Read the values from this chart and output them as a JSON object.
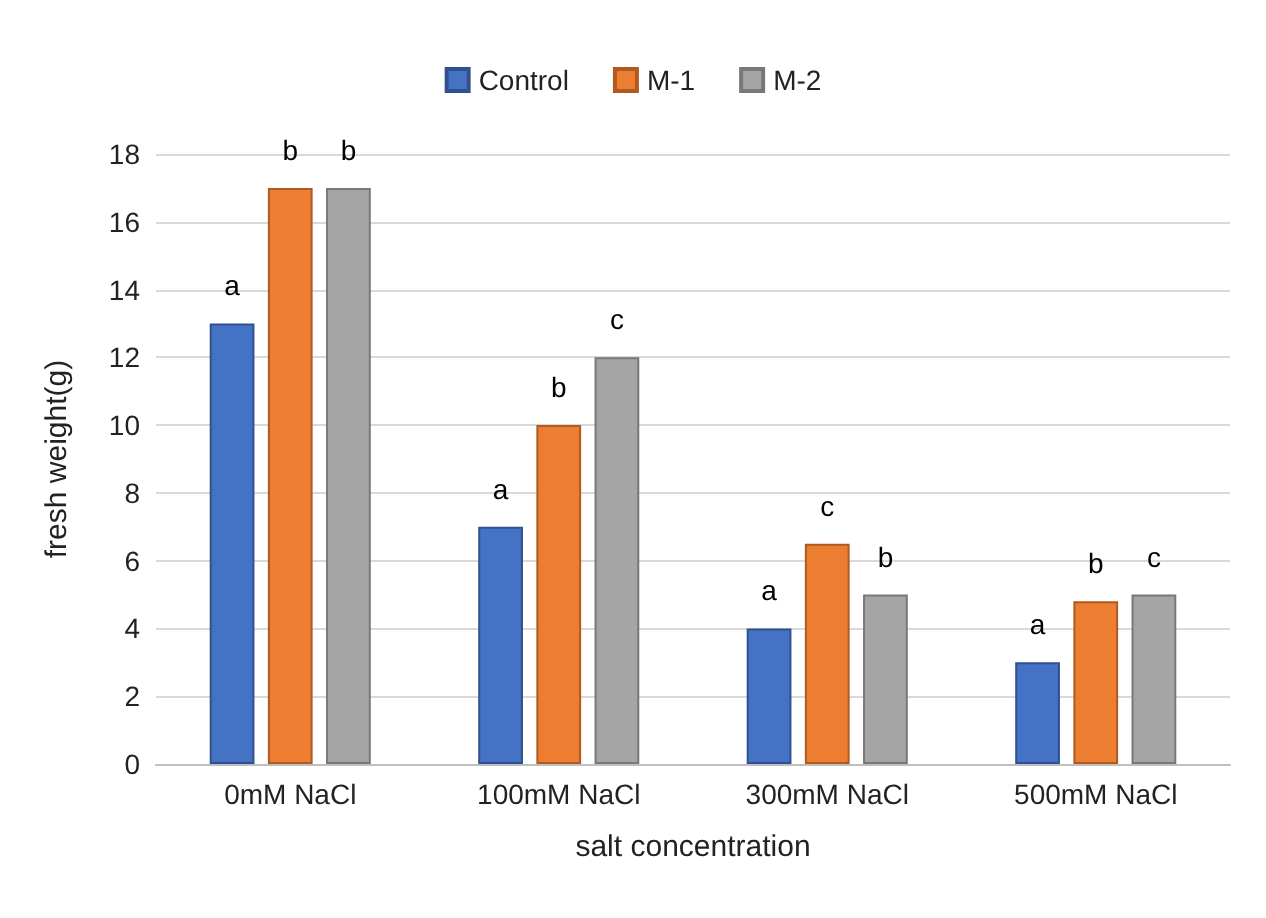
{
  "chart_data": {
    "type": "bar",
    "xlabel": "salt concentration",
    "ylabel": "fresh weight(g)",
    "categories": [
      "0mM NaCl",
      "100mM NaCl",
      "300mM NaCl",
      "500mM NaCl"
    ],
    "series": [
      {
        "name": "Control",
        "color": "#4472c4",
        "values": [
          13,
          7,
          4,
          3
        ],
        "value_labels": [
          "a",
          "a",
          "a",
          "a"
        ]
      },
      {
        "name": "M-1",
        "color": "#ed7d31",
        "values": [
          17,
          10,
          6.5,
          4.8
        ],
        "value_labels": [
          "b",
          "b",
          "c",
          "b"
        ]
      },
      {
        "name": "M-2",
        "color": "#a5a5a5",
        "values": [
          17,
          12,
          5,
          5
        ],
        "value_labels": [
          "b",
          "c",
          "b",
          "c"
        ]
      }
    ],
    "ylim": [
      0,
      18
    ],
    "yticks": [
      0,
      2,
      4,
      6,
      8,
      10,
      12,
      14,
      16,
      18
    ],
    "grid": "y",
    "legend": "top"
  }
}
